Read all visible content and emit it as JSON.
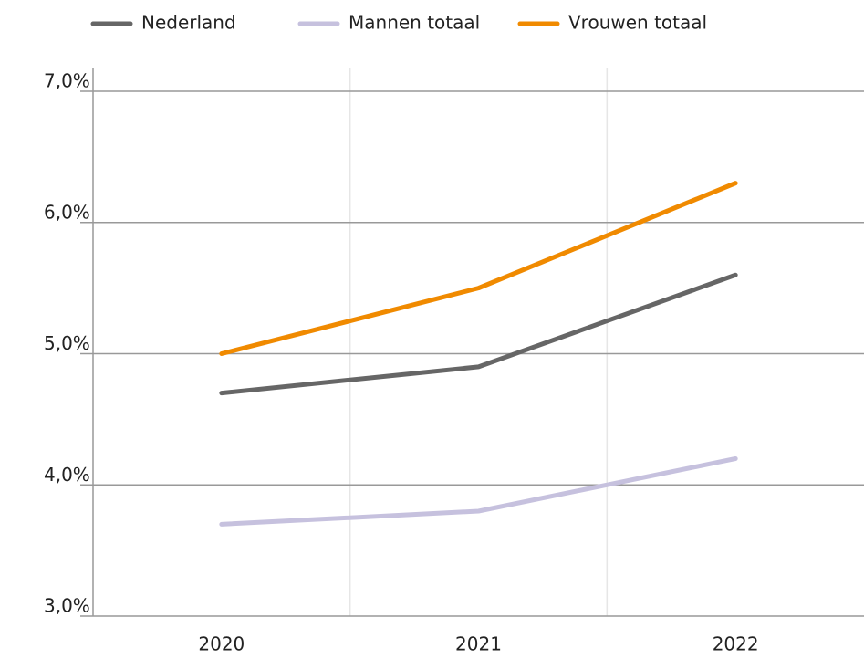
{
  "chart_data": {
    "type": "line",
    "categories": [
      "2020",
      "2021",
      "2022"
    ],
    "series": [
      {
        "name": "Nederland",
        "color": "#666666",
        "values": [
          4.7,
          4.9,
          5.6
        ]
      },
      {
        "name": "Mannen totaal",
        "color": "#c6c1de",
        "values": [
          3.7,
          3.8,
          4.2
        ]
      },
      {
        "name": "Vrouwen totaal",
        "color": "#f08a00",
        "values": [
          5.0,
          5.5,
          6.3
        ]
      }
    ],
    "ylim": [
      3,
      7
    ],
    "yticks": [
      {
        "value": 3,
        "label": "3,0%"
      },
      {
        "value": 4,
        "label": "4,0%"
      },
      {
        "value": 5,
        "label": "5,0%"
      },
      {
        "value": 6,
        "label": "6,0%"
      },
      {
        "value": 7,
        "label": "7,0%"
      }
    ],
    "grid": true,
    "legend": "top"
  }
}
